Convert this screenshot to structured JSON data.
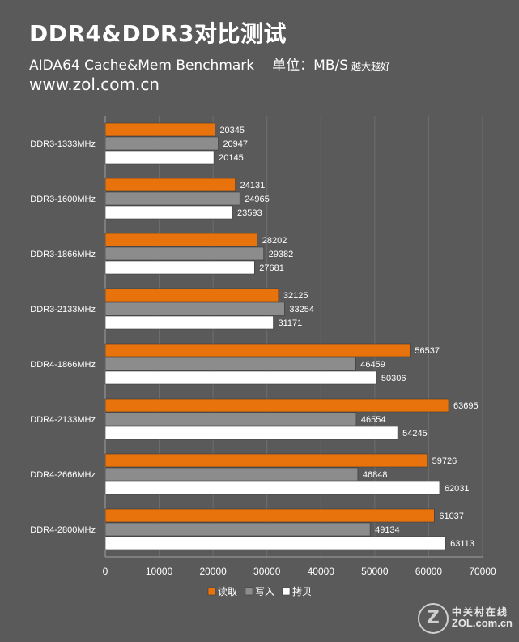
{
  "header": {
    "title": "DDR4&DDR3对比测试",
    "subtitle": "AIDA64  Cache&Mem Benchmark",
    "unit": "单位：MB/S",
    "unit_note": "越大越好",
    "site": "www.zol.com.cn"
  },
  "watermark": {
    "logo_letter": "Z",
    "name_cn": "中关村在线",
    "name_en": "ZOL.com.cn"
  },
  "colors": {
    "read": "#e8730c",
    "write": "#8c8c8c",
    "copy": "#ffffff",
    "background": "#5a5a5a"
  },
  "chart_data": {
    "type": "bar",
    "orientation": "horizontal",
    "categories": [
      "DDR3-1333MHz",
      "DDR3-1600MHz",
      "DDR3-1866MHz",
      "DDR3-2133MHz",
      "DDR4-1866MHz",
      "DDR4-2133MHz",
      "DDR4-2666MHz",
      "DDR4-2800MHz"
    ],
    "series": [
      {
        "name": "读取",
        "color": "#e8730c",
        "values": [
          20345,
          24131,
          28202,
          32125,
          56537,
          63695,
          59726,
          61037
        ]
      },
      {
        "name": "写入",
        "color": "#8c8c8c",
        "values": [
          20947,
          24965,
          29382,
          33254,
          46459,
          46554,
          46848,
          49134
        ]
      },
      {
        "name": "拷贝",
        "color": "#ffffff",
        "values": [
          20145,
          23593,
          27681,
          31171,
          50306,
          54245,
          62031,
          63113
        ]
      }
    ],
    "xlim": [
      0,
      70000
    ],
    "xticks": [
      "0",
      "10000",
      "20000",
      "30000",
      "40000",
      "50000",
      "60000",
      "70000"
    ],
    "grid": true,
    "legend": "bottom"
  }
}
